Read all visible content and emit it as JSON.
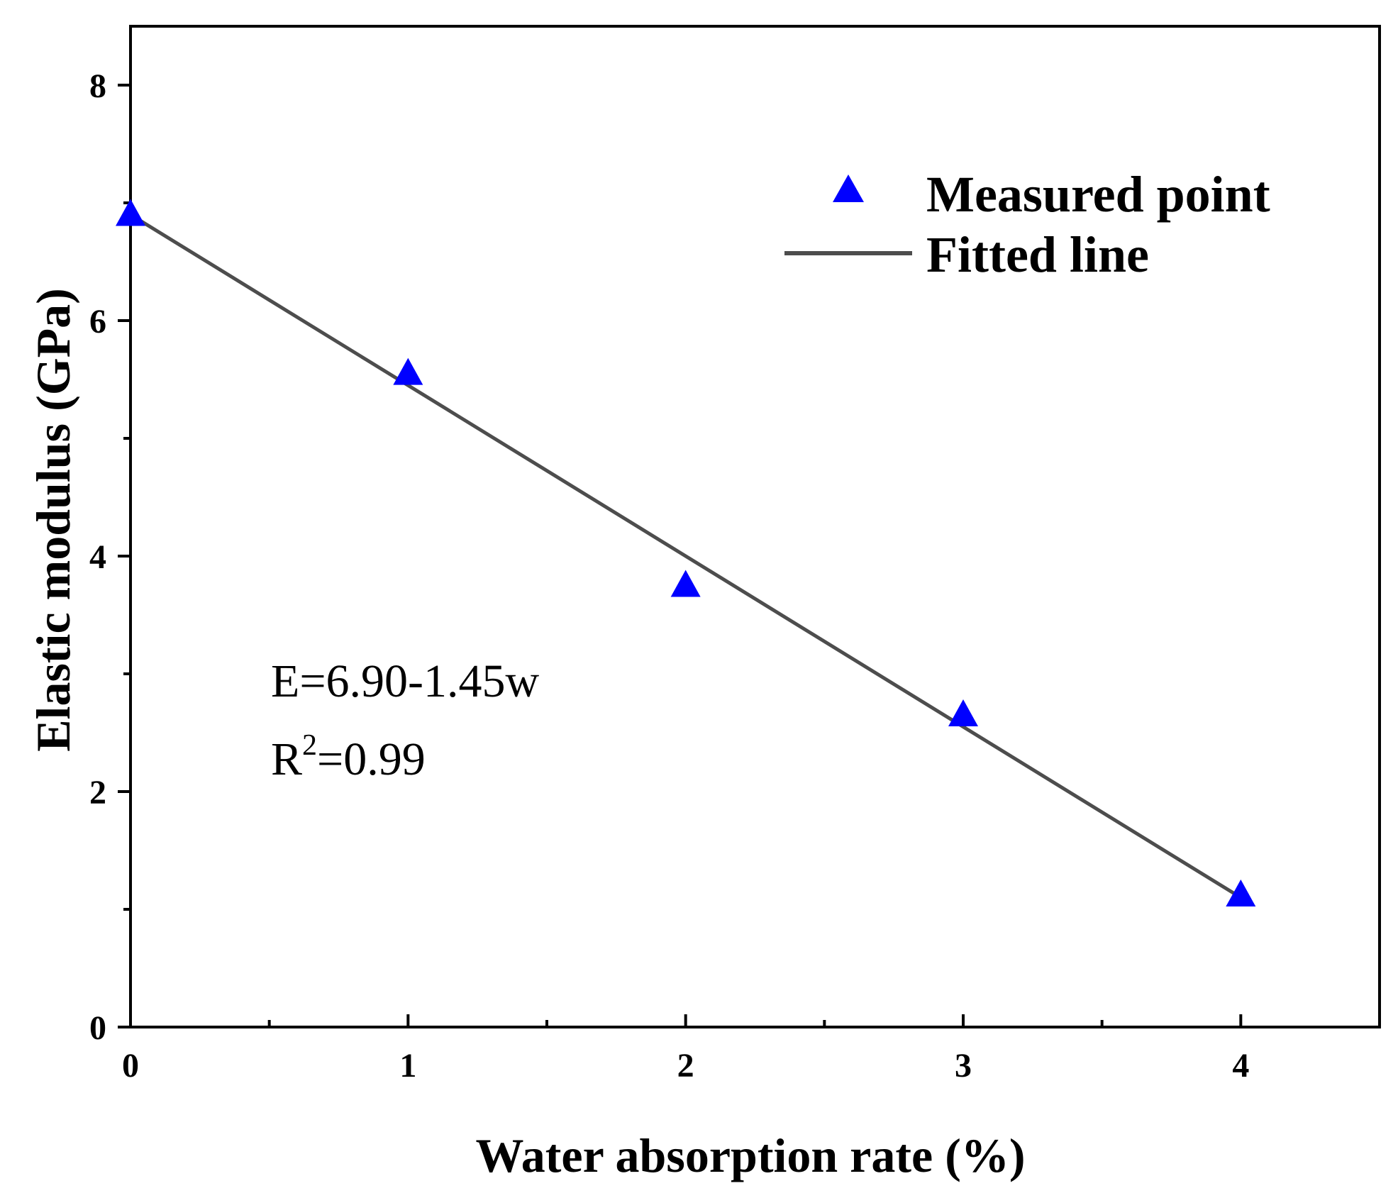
{
  "chart_data": {
    "type": "scatter",
    "title": "",
    "xlabel": "Water absorption rate (%)",
    "ylabel": "Elastic modulus (GPa)",
    "xlim": [
      0,
      4.5
    ],
    "ylim": [
      0,
      8.5
    ],
    "x_major_ticks": [
      0,
      1,
      2,
      3,
      4
    ],
    "x_minor_ticks": [
      0.5,
      1.5,
      2.5,
      3.5
    ],
    "y_major_ticks": [
      0,
      2,
      4,
      6,
      8
    ],
    "y_minor_ticks": [
      1,
      3,
      5,
      7
    ],
    "x_tick_labels": [
      "0",
      "1",
      "2",
      "3",
      "4"
    ],
    "y_tick_labels": [
      "0",
      "2",
      "4",
      "6",
      "8"
    ],
    "grid": false,
    "legend_position": "top-right",
    "series": [
      {
        "name": "Measured point",
        "kind": "scatter",
        "marker": "triangle",
        "color": "#0000ff",
        "x": [
          0,
          1,
          2,
          3,
          4
        ],
        "y": [
          6.9,
          5.55,
          3.75,
          2.65,
          1.12
        ]
      },
      {
        "name": "Fitted line",
        "kind": "line",
        "color": "#4d4d4d",
        "x": [
          0,
          4
        ],
        "y": [
          6.9,
          1.1
        ]
      }
    ],
    "annotations": {
      "equation": "E=6.90-1.45w",
      "r2_prefix": "R",
      "r2_sup": "2",
      "r2_value": "=0.99"
    }
  }
}
